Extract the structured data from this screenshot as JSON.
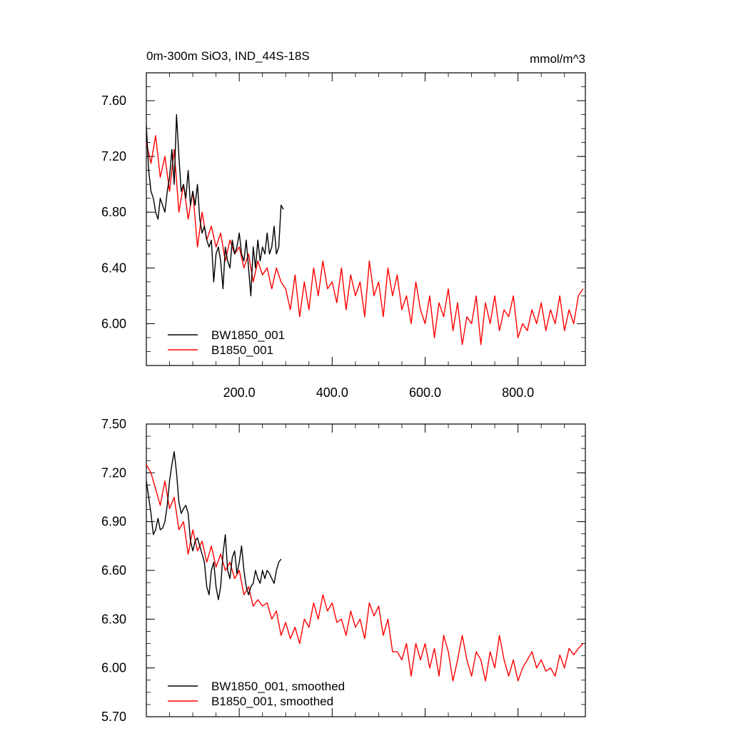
{
  "chart_data": [
    {
      "type": "line",
      "title": "0m-300m SiO3, IND_44S-18S",
      "units": "mmol/m^3",
      "xlim": [
        0,
        945
      ],
      "ylim": [
        5.7,
        7.8
      ],
      "x_ticks": [
        200,
        400,
        600,
        800
      ],
      "x_tick_labels": [
        "200.0",
        "400.0",
        "600.0",
        "800.0"
      ],
      "y_ticks": [
        6.0,
        6.4,
        6.8,
        7.2,
        7.6
      ],
      "y_tick_labels": [
        "6.00",
        "6.40",
        "6.80",
        "7.20",
        "7.60"
      ],
      "legend_position": "bottom-left",
      "series": [
        {
          "name": "BW1850_001",
          "color": "#000000",
          "x": [
            0,
            5,
            10,
            15,
            20,
            25,
            30,
            35,
            40,
            45,
            50,
            55,
            60,
            65,
            70,
            75,
            80,
            85,
            90,
            95,
            100,
            105,
            110,
            115,
            120,
            125,
            130,
            135,
            140,
            145,
            150,
            155,
            160,
            165,
            170,
            175,
            180,
            185,
            190,
            195,
            200,
            205,
            210,
            215,
            220,
            225,
            230,
            235,
            240,
            245,
            250,
            255,
            260,
            265,
            270,
            275,
            280,
            285,
            290,
            295
          ],
          "values": [
            7.42,
            7.1,
            6.95,
            6.9,
            6.8,
            6.75,
            6.9,
            6.85,
            6.8,
            6.95,
            7.05,
            7.25,
            7.0,
            7.5,
            7.2,
            6.95,
            7.0,
            6.9,
            7.1,
            6.85,
            6.95,
            6.85,
            7.0,
            6.75,
            6.65,
            6.7,
            6.6,
            6.55,
            6.6,
            6.3,
            6.5,
            6.55,
            6.45,
            6.25,
            6.55,
            6.45,
            6.4,
            6.6,
            6.5,
            6.55,
            6.65,
            6.5,
            6.45,
            6.6,
            6.4,
            6.2,
            6.55,
            6.4,
            6.6,
            6.45,
            6.55,
            6.5,
            6.65,
            6.5,
            6.55,
            6.7,
            6.5,
            6.55,
            6.85,
            6.82
          ]
        },
        {
          "name": "B1850_001",
          "color": "#ff0000",
          "x": [
            0,
            10,
            20,
            30,
            40,
            50,
            60,
            70,
            80,
            90,
            100,
            110,
            120,
            130,
            140,
            150,
            160,
            170,
            180,
            190,
            200,
            210,
            220,
            230,
            240,
            250,
            260,
            270,
            280,
            290,
            300,
            310,
            320,
            330,
            340,
            350,
            360,
            370,
            380,
            390,
            400,
            410,
            420,
            430,
            440,
            450,
            460,
            470,
            480,
            490,
            500,
            510,
            520,
            530,
            540,
            550,
            560,
            570,
            580,
            590,
            600,
            610,
            620,
            630,
            640,
            650,
            660,
            670,
            680,
            690,
            700,
            710,
            720,
            730,
            740,
            750,
            760,
            770,
            780,
            790,
            800,
            810,
            820,
            830,
            840,
            850,
            860,
            870,
            880,
            890,
            900,
            910,
            920,
            930,
            940
          ],
          "values": [
            7.3,
            7.15,
            7.35,
            7.05,
            7.2,
            6.95,
            7.25,
            6.8,
            7.0,
            6.75,
            6.95,
            6.55,
            6.8,
            6.6,
            6.7,
            6.55,
            6.65,
            6.45,
            6.6,
            6.5,
            6.55,
            6.4,
            6.5,
            6.3,
            6.45,
            6.35,
            6.4,
            6.25,
            6.4,
            6.3,
            6.25,
            6.1,
            6.35,
            6.05,
            6.3,
            6.1,
            6.4,
            6.2,
            6.45,
            6.25,
            6.3,
            6.15,
            6.4,
            6.1,
            6.35,
            6.2,
            6.3,
            6.05,
            6.45,
            6.2,
            6.3,
            6.05,
            6.4,
            6.2,
            6.35,
            6.1,
            6.2,
            6.0,
            6.3,
            6.1,
            6.0,
            6.2,
            5.9,
            6.15,
            6.05,
            6.25,
            5.95,
            6.15,
            5.85,
            6.05,
            6.0,
            6.2,
            5.85,
            6.15,
            6.0,
            6.2,
            5.95,
            6.1,
            6.05,
            6.2,
            5.9,
            6.0,
            5.95,
            6.1,
            6.0,
            6.15,
            5.95,
            6.1,
            6.0,
            6.2,
            5.95,
            6.1,
            6.0,
            6.2,
            6.25
          ]
        }
      ]
    },
    {
      "type": "line",
      "xlim": [
        0,
        945
      ],
      "ylim": [
        5.7,
        7.5
      ],
      "y_ticks": [
        5.7,
        6.0,
        6.3,
        6.6,
        6.9,
        7.2,
        7.5
      ],
      "y_tick_labels": [
        "5.70",
        "6.00",
        "6.30",
        "6.60",
        "6.90",
        "7.20",
        "7.50"
      ],
      "legend_position": "bottom-left",
      "series": [
        {
          "name": "BW1850_001, smoothed",
          "color": "#000000",
          "x": [
            0,
            5,
            10,
            15,
            20,
            25,
            30,
            35,
            40,
            45,
            50,
            55,
            60,
            65,
            70,
            75,
            80,
            85,
            90,
            95,
            100,
            105,
            110,
            115,
            120,
            125,
            130,
            135,
            140,
            145,
            150,
            155,
            160,
            165,
            170,
            175,
            180,
            185,
            190,
            195,
            200,
            205,
            210,
            215,
            220,
            225,
            230,
            235,
            240,
            245,
            250,
            255,
            260,
            265,
            270,
            275,
            280,
            285,
            290
          ],
          "values": [
            7.15,
            7.05,
            6.95,
            6.82,
            6.85,
            6.92,
            6.85,
            6.86,
            6.9,
            7.0,
            7.15,
            7.25,
            7.33,
            7.2,
            7.02,
            6.95,
            6.98,
            7.0,
            6.95,
            6.78,
            6.72,
            6.78,
            6.8,
            6.75,
            6.7,
            6.65,
            6.5,
            6.45,
            6.6,
            6.65,
            6.5,
            6.42,
            6.5,
            6.7,
            6.82,
            6.6,
            6.55,
            6.68,
            6.72,
            6.58,
            6.65,
            6.75,
            6.6,
            6.5,
            6.45,
            6.5,
            6.52,
            6.6,
            6.55,
            6.52,
            6.6,
            6.55,
            6.6,
            6.58,
            6.55,
            6.52,
            6.6,
            6.65,
            6.67
          ]
        },
        {
          "name": "B1850_001, smoothed",
          "color": "#ff0000",
          "x": [
            0,
            10,
            20,
            30,
            40,
            50,
            60,
            70,
            80,
            90,
            100,
            110,
            120,
            130,
            140,
            150,
            160,
            170,
            180,
            190,
            200,
            210,
            220,
            230,
            240,
            250,
            260,
            270,
            280,
            290,
            300,
            310,
            320,
            330,
            340,
            350,
            360,
            370,
            380,
            390,
            400,
            410,
            420,
            430,
            440,
            450,
            460,
            470,
            480,
            490,
            500,
            510,
            520,
            530,
            540,
            550,
            560,
            570,
            580,
            590,
            600,
            610,
            620,
            630,
            640,
            650,
            660,
            670,
            680,
            690,
            700,
            710,
            720,
            730,
            740,
            750,
            760,
            770,
            780,
            790,
            800,
            810,
            820,
            830,
            840,
            850,
            860,
            870,
            880,
            890,
            900,
            910,
            920,
            930,
            940
          ],
          "values": [
            7.25,
            7.2,
            7.1,
            7.0,
            7.15,
            6.98,
            7.05,
            6.85,
            6.9,
            6.7,
            6.85,
            6.72,
            6.78,
            6.65,
            6.75,
            6.62,
            6.7,
            6.6,
            6.65,
            6.55,
            6.6,
            6.45,
            6.5,
            6.38,
            6.42,
            6.38,
            6.4,
            6.3,
            6.35,
            6.2,
            6.28,
            6.18,
            6.25,
            6.15,
            6.3,
            6.25,
            6.4,
            6.3,
            6.45,
            6.35,
            6.4,
            6.28,
            6.3,
            6.2,
            6.35,
            6.25,
            6.3,
            6.18,
            6.4,
            6.32,
            6.38,
            6.2,
            6.3,
            6.1,
            6.1,
            6.05,
            6.15,
            5.95,
            6.15,
            6.05,
            6.15,
            6.0,
            6.12,
            5.95,
            6.2,
            6.1,
            5.92,
            6.05,
            6.2,
            6.05,
            5.95,
            6.1,
            6.05,
            5.92,
            6.1,
            6.0,
            6.2,
            6.05,
            5.95,
            6.05,
            5.92,
            6.0,
            6.05,
            6.1,
            6.0,
            6.05,
            5.98,
            6.0,
            5.95,
            6.08,
            6.0,
            6.12,
            6.08,
            6.12,
            6.15
          ]
        }
      ]
    }
  ]
}
